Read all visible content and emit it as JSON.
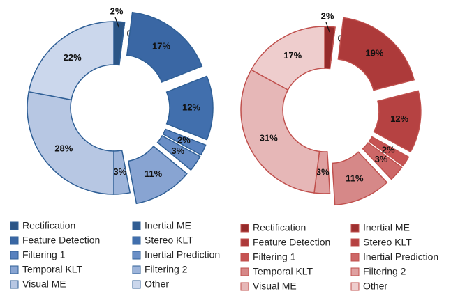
{
  "chart_data": [
    {
      "type": "pie",
      "donut": true,
      "categories": [
        "Rectification",
        "Inertial ME",
        "Feature Detection",
        "Stereo KLT",
        "Filtering 1",
        "Inertial Prediction",
        "Temporal KLT",
        "Filtering 2",
        "Visual ME",
        "Other"
      ],
      "values": [
        2,
        0,
        17,
        12,
        2,
        3,
        11,
        3,
        28,
        22
      ],
      "value_labels": [
        "2%",
        "0%",
        "17%",
        "12%",
        "2%",
        "3%",
        "11%",
        "3%",
        "28%",
        "22%"
      ],
      "colors": [
        "#2b5586",
        "#315d93",
        "#3a67a4",
        "#416fad",
        "#5882bf",
        "#6a8fc6",
        "#88a4d2",
        "#9db4da",
        "#b7c7e3",
        "#cbd7ec"
      ],
      "exploded": [
        false,
        false,
        true,
        true,
        true,
        true,
        true,
        false,
        false,
        false
      ],
      "edge_color": "#2f5f96"
    },
    {
      "type": "pie",
      "donut": true,
      "categories": [
        "Rectification",
        "Inertial ME",
        "Feature Detection",
        "Stereo KLT",
        "Filtering 1",
        "Inertial Prediction",
        "Temporal KLT",
        "Filtering 2",
        "Visual ME",
        "Other"
      ],
      "values": [
        2,
        0,
        19,
        12,
        2,
        3,
        11,
        3,
        31,
        17
      ],
      "value_labels": [
        "2%",
        "0%",
        "19%",
        "12%",
        "2%",
        "3%",
        "11%",
        "3%",
        "31%",
        "17%"
      ],
      "colors": [
        "#952b2b",
        "#9e3030",
        "#ad3a3a",
        "#b64242",
        "#c65353",
        "#cd6767",
        "#d68888",
        "#dfa0a0",
        "#e6b7b7",
        "#eecdcd"
      ],
      "exploded": [
        false,
        false,
        true,
        true,
        true,
        true,
        true,
        false,
        false,
        false
      ],
      "edge_color": "#c0504d"
    }
  ]
}
